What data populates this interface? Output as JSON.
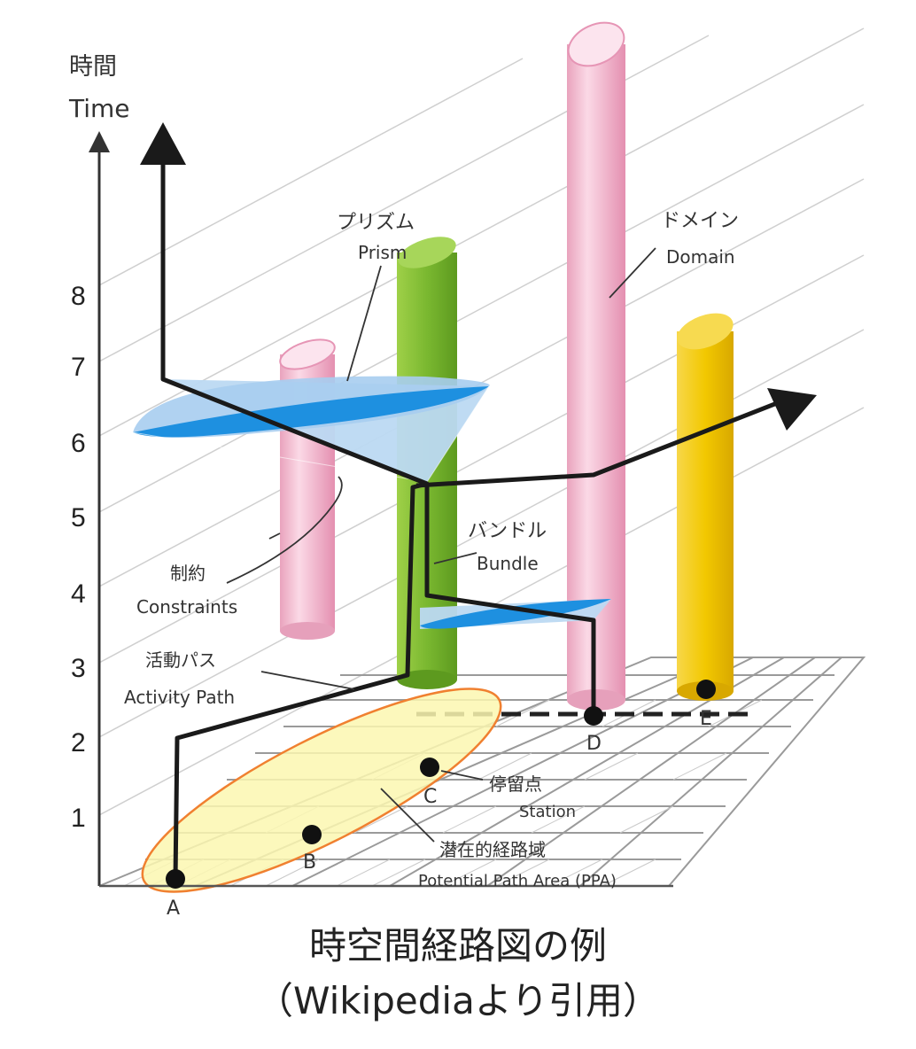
{
  "axis": {
    "label_ja": "時間",
    "label_en": "Time",
    "ticks": [
      "1",
      "2",
      "3",
      "4",
      "5",
      "6",
      "7",
      "8"
    ]
  },
  "labels": {
    "prism_ja": "プリズム",
    "prism_en": "Prism",
    "domain_ja": "ドメイン",
    "domain_en": "Domain",
    "constraints_ja": "制約",
    "constraints_en": "Constraints",
    "bundle_ja": "バンドル",
    "bundle_en": "Bundle",
    "activity_ja": "活動パス",
    "activity_en": "Activity Path",
    "station_ja": "停留点",
    "station_en": "Station",
    "ppa_ja": "潜在的経路域",
    "ppa_en": "Potential Path Area (PPA)"
  },
  "points": [
    "A",
    "B",
    "C",
    "D",
    "E"
  ],
  "colors": {
    "path": "#1a1a1a",
    "prism": "#1e90e0",
    "pink": "#f4b8cf",
    "green": "#8cc43c",
    "yellow": "#f2c800",
    "ppa_fill": "#fbf7b0",
    "ppa_edge": "#f08030"
  },
  "caption": {
    "line1": "時空間経路図の例",
    "line2": "（Wikipediaより引用）"
  }
}
